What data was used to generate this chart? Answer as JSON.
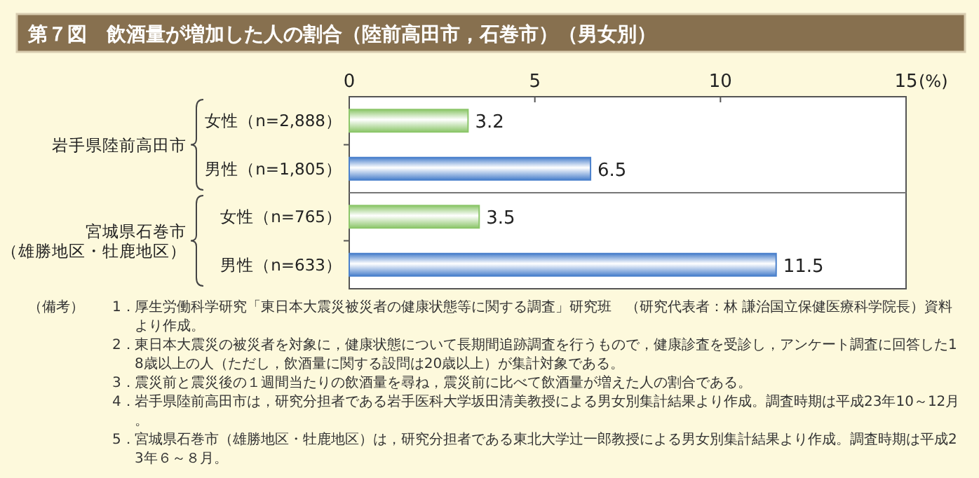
{
  "chart_data": {
    "type": "bar",
    "orientation": "horizontal",
    "title": "第７図　飲酒量が増加した人の割合（陸前高田市，石巻市）（男女別）",
    "categories": [
      "女性（n=2,888）",
      "男性（n=1,805）",
      "女性（n=765）",
      "男性（n=633）"
    ],
    "values": [
      3.2,
      6.5,
      3.5,
      11.5
    ],
    "colors": [
      "#8cc66a",
      "#4a80cc",
      "#8cc66a",
      "#4a80cc"
    ],
    "xlim": [
      0,
      15
    ],
    "xticks": [
      0,
      5,
      10,
      15
    ],
    "xlabel": "(%)",
    "data_labels": true,
    "grid": false,
    "annotations": [
      "岩手県陸前高田市",
      "宮城県石巻市（雄勝地区・牡鹿地区）",
      "（備考）",
      "1．厚生労働科学研究「東日本大震災被災者の健康状態等に関する調査」研究班　（研究代表者：林 謙治国立保健医療科学院長）資料より作成。",
      "2．東日本大震災の被災者を対象に，健康状態について長期間追跡調査を行うもので，健康診査を受診し，アンケート調査に回答した18歳以上の人（ただし，飲酒量に関する設問は20歳以上）が集計対象である。",
      "3．震災前と震災後の１週間当たりの飲酒量を尋ね，震災前に比べて飲酒量が増えた人の割合である。",
      "4．岩手県陸前高田市は，研究分担者である岩手医科大学坂田清美教授による男女別集計結果より作成。調査時期は平成23年10～12月。",
      "5．宮城県石巻市（雄勝地区・牡鹿地区）は，研究分担者である東北大学辻一郎教授による男女別集計結果より作成。調査時期は平成23年６～８月。"
    ]
  }
}
